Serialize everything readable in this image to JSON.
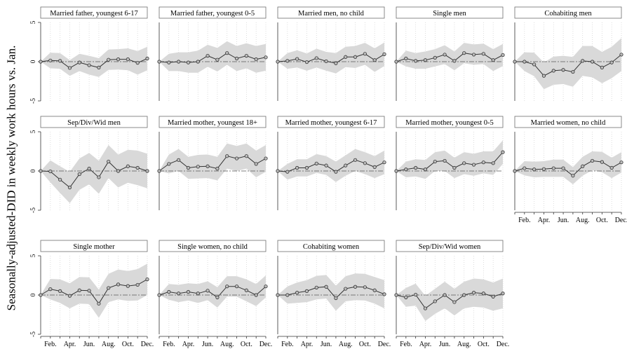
{
  "figure": {
    "ylabel": "Seasonally-adjusted-DID in weekly work hours vs. Jan."
  },
  "chart_data": {
    "type": "line",
    "ylabel": "Seasonally-adjusted-DID in weekly work hours vs. Jan.",
    "ylim": [
      -5,
      5
    ],
    "yticks": [
      -5,
      0,
      5
    ],
    "x": [
      1,
      2,
      3,
      4,
      5,
      6,
      7,
      8,
      9,
      10,
      11,
      12
    ],
    "xtick_labels": {
      "2": "Feb.",
      "4": "Apr.",
      "6": "Jun.",
      "8": "Aug.",
      "10": "Oct.",
      "12": "Dec."
    },
    "reference_line": 0,
    "grid": "dotted vertical at each month",
    "band": "95% confidence interval, light gray",
    "line_color": "#333333",
    "band_color": "#d9d9d9",
    "panels": [
      {
        "title": "Married father, youngest 6-17",
        "values": [
          0,
          0.15,
          0.1,
          -0.8,
          -0.1,
          -0.45,
          -0.75,
          0.25,
          0.3,
          0.3,
          -0.15,
          0.4
        ],
        "ci_halfwidth": [
          0,
          1.0,
          1.0,
          1.0,
          1.1,
          1.2,
          1.2,
          1.3,
          1.3,
          1.4,
          1.5,
          1.5
        ]
      },
      {
        "title": "Married father, youngest 0-5",
        "values": [
          0,
          -0.1,
          0,
          -0.1,
          0,
          0.75,
          0.25,
          1.1,
          0.4,
          0.75,
          0.3,
          0.55
        ],
        "ci_halfwidth": [
          0,
          1.1,
          1.2,
          1.3,
          1.4,
          1.4,
          1.5,
          1.5,
          1.6,
          1.6,
          1.7,
          1.7
        ]
      },
      {
        "title": "Married men, no child",
        "values": [
          0,
          0.1,
          0.35,
          -0.05,
          0.45,
          0.05,
          -0.2,
          0.6,
          0.6,
          1.0,
          0.2,
          0.95
        ],
        "ci_halfwidth": [
          0,
          1.0,
          1.1,
          1.1,
          1.2,
          1.2,
          1.3,
          1.3,
          1.4,
          1.4,
          1.5,
          1.5
        ]
      },
      {
        "title": "Single men",
        "values": [
          0,
          0.4,
          0.1,
          0.2,
          0.5,
          0.9,
          0.1,
          1.1,
          0.9,
          1.0,
          0.2,
          0.85
        ],
        "ci_halfwidth": [
          0,
          1.0,
          1.0,
          1.1,
          1.1,
          1.2,
          1.2,
          1.3,
          1.3,
          1.3,
          1.4,
          1.4
        ]
      },
      {
        "title": "Cohabiting men",
        "values": [
          0,
          0,
          -0.35,
          -1.8,
          -1.15,
          -1.05,
          -1.3,
          0.1,
          0,
          -0.75,
          -0.1,
          0.9
        ],
        "ci_halfwidth": [
          0,
          1.2,
          1.5,
          1.7,
          1.8,
          1.8,
          1.9,
          1.9,
          2.0,
          2.0,
          2.0,
          2.1
        ]
      },
      {
        "title": "Sep/Div/Wid men",
        "values": [
          0,
          -0.05,
          -1.1,
          -2.1,
          -0.4,
          0.3,
          -0.8,
          1.2,
          0,
          0.6,
          0.4,
          0
        ],
        "ci_halfwidth": [
          0,
          1.4,
          1.7,
          2.0,
          2.0,
          2.0,
          2.1,
          2.1,
          2.1,
          2.1,
          2.2,
          2.2
        ]
      },
      {
        "title": "Married mother, youngest 18+",
        "values": [
          0,
          0.9,
          1.4,
          0.4,
          0.55,
          0.6,
          0.3,
          1.9,
          1.6,
          1.9,
          0.9,
          1.6
        ],
        "ci_halfwidth": [
          0,
          1.2,
          1.4,
          1.4,
          1.5,
          1.5,
          1.5,
          1.6,
          1.6,
          1.6,
          1.7,
          1.7
        ]
      },
      {
        "title": "Married mother, youngest 6-17",
        "values": [
          0,
          -0.1,
          0.4,
          0.4,
          0.95,
          0.7,
          -0.1,
          0.7,
          1.4,
          1.0,
          0.5,
          1.1
        ],
        "ci_halfwidth": [
          0,
          1.0,
          1.1,
          1.1,
          1.2,
          1.2,
          1.3,
          1.3,
          1.4,
          1.4,
          1.4,
          1.5
        ]
      },
      {
        "title": "Married mother, youngest 0-5",
        "values": [
          0,
          0.2,
          0.4,
          0.2,
          1.2,
          1.3,
          0.4,
          1.0,
          0.8,
          1.1,
          1.0,
          2.4
        ],
        "ci_halfwidth": [
          0,
          1.0,
          1.1,
          1.2,
          1.2,
          1.3,
          1.3,
          1.4,
          1.4,
          1.4,
          1.5,
          1.5
        ]
      },
      {
        "title": "Married women, no child",
        "values": [
          0,
          0.35,
          0.2,
          0.25,
          0.35,
          0.35,
          -0.6,
          0.6,
          1.3,
          1.15,
          0.4,
          1.1
        ],
        "ci_halfwidth": [
          0,
          0.9,
          1.0,
          1.0,
          1.1,
          1.1,
          1.1,
          1.2,
          1.2,
          1.3,
          1.3,
          1.3
        ]
      },
      {
        "title": "Single mother",
        "values": [
          0,
          0.75,
          0.5,
          -0.1,
          0.6,
          0.55,
          -1.1,
          0.9,
          1.35,
          1.15,
          1.3,
          2.0
        ],
        "ci_halfwidth": [
          0,
          1.3,
          1.5,
          1.6,
          1.7,
          1.7,
          1.8,
          1.8,
          1.9,
          1.9,
          2.0,
          2.0
        ]
      },
      {
        "title": "Single women, no child",
        "values": [
          0,
          0.4,
          0.2,
          0.4,
          0.2,
          0.55,
          -0.3,
          1.1,
          1.1,
          0.6,
          0,
          1.1
        ],
        "ci_halfwidth": [
          0,
          1.0,
          1.1,
          1.1,
          1.2,
          1.2,
          1.3,
          1.3,
          1.3,
          1.4,
          1.4,
          1.4
        ]
      },
      {
        "title": "Cohabiting women",
        "values": [
          0,
          0,
          0.3,
          0.5,
          0.95,
          1.05,
          -0.4,
          0.8,
          1.05,
          1.0,
          0.6,
          0.1
        ],
        "ci_halfwidth": [
          0,
          1.1,
          1.3,
          1.4,
          1.5,
          1.5,
          1.6,
          1.6,
          1.7,
          1.7,
          1.7,
          1.8
        ]
      },
      {
        "title": "Sep/Div/Wid women",
        "values": [
          0,
          -0.3,
          0.05,
          -1.7,
          -0.8,
          0,
          -0.9,
          0,
          0.3,
          0.2,
          -0.2,
          0.2
        ],
        "ci_halfwidth": [
          0,
          1.2,
          1.4,
          1.6,
          1.6,
          1.7,
          1.7,
          1.7,
          1.8,
          1.8,
          1.8,
          1.9
        ]
      }
    ]
  }
}
